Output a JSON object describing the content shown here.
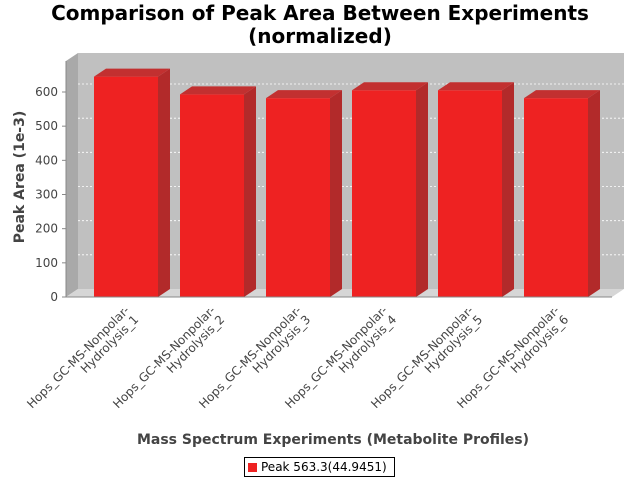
{
  "chart_data": {
    "type": "bar",
    "style": "3d",
    "title": "Comparison of Peak Area Between Experiments",
    "subtitle": "(normalized)",
    "xlabel": "Mass Spectrum Experiments (Metabolite Profiles)",
    "ylabel": "Peak Area (1e-3)",
    "ylim": [
      0,
      650
    ],
    "yticks": [
      0,
      100,
      200,
      300,
      400,
      500,
      600
    ],
    "grid": true,
    "legend_position": "bottom",
    "categories": [
      "Hops_GC-MS-Nonpolar-Hydrolysis_1",
      "Hops_GC-MS-Nonpolar-Hydrolysis_2",
      "Hops_GC-MS-Nonpolar-Hydrolysis_3",
      "Hops_GC-MS-Nonpolar-Hydrolysis_4",
      "Hops_GC-MS-Nonpolar-Hydrolysis_5",
      "Hops_GC-MS-Nonpolar-Hydrolysis_6"
    ],
    "category_label_lines": [
      [
        "Hops_GC-MS-Nonpolar-",
        "Hydrolysis_1"
      ],
      [
        "Hops_GC-MS-Nonpolar-",
        "Hydrolysis_2"
      ],
      [
        "Hops_GC-MS-Nonpolar-",
        "Hydrolysis_3"
      ],
      [
        "Hops_GC-MS-Nonpolar-",
        "Hydrolysis_4"
      ],
      [
        "Hops_GC-MS-Nonpolar-",
        "Hydrolysis_5"
      ],
      [
        "Hops_GC-MS-Nonpolar-",
        "Hydrolysis_6"
      ]
    ],
    "series": [
      {
        "name": "Peak 563.3(44.9451)",
        "color": "#ee2222",
        "values": [
          645,
          593,
          582,
          605,
          605,
          582
        ]
      }
    ]
  }
}
